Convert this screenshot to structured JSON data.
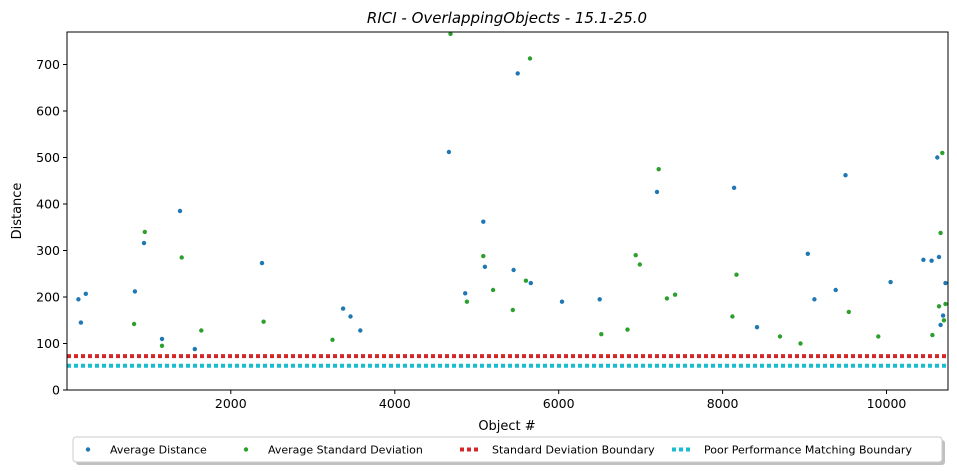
{
  "chart_data": {
    "type": "scatter",
    "title": "RICI - OverlappingObjects - 15.1-25.0",
    "xlabel": "Object #",
    "ylabel": "Distance",
    "xlim": [
      1,
      10750
    ],
    "ylim": [
      0,
      770
    ],
    "xticks": [
      2000,
      4000,
      6000,
      8000,
      10000
    ],
    "yticks": [
      0,
      100,
      200,
      300,
      400,
      500,
      600,
      700
    ],
    "grid": false,
    "legend_position": "bottom-outside",
    "series": [
      {
        "name": "Average Distance",
        "kind": "points",
        "color": "#1f77b4",
        "points": [
          [
            140,
            195
          ],
          [
            170,
            145
          ],
          [
            230,
            207
          ],
          [
            830,
            212
          ],
          [
            940,
            316
          ],
          [
            1160,
            110
          ],
          [
            1380,
            385
          ],
          [
            1560,
            88
          ],
          [
            2380,
            273
          ],
          [
            3370,
            175
          ],
          [
            3460,
            158
          ],
          [
            3580,
            128
          ],
          [
            4660,
            512
          ],
          [
            4860,
            208
          ],
          [
            5080,
            362
          ],
          [
            5100,
            265
          ],
          [
            5450,
            258
          ],
          [
            5500,
            681
          ],
          [
            5660,
            230
          ],
          [
            6040,
            190
          ],
          [
            6500,
            195
          ],
          [
            7200,
            426
          ],
          [
            8140,
            435
          ],
          [
            8420,
            135
          ],
          [
            9040,
            293
          ],
          [
            9120,
            195
          ],
          [
            9380,
            215
          ],
          [
            9500,
            462
          ],
          [
            10050,
            232
          ],
          [
            10450,
            280
          ],
          [
            10550,
            278
          ],
          [
            10620,
            500
          ],
          [
            10640,
            286
          ],
          [
            10660,
            140
          ],
          [
            10690,
            160
          ],
          [
            10720,
            230
          ]
        ]
      },
      {
        "name": "Average Standard Deviation",
        "kind": "points",
        "color": "#2ca02c",
        "points": [
          [
            820,
            142
          ],
          [
            950,
            340
          ],
          [
            1160,
            95
          ],
          [
            1400,
            285
          ],
          [
            1640,
            128
          ],
          [
            2400,
            147
          ],
          [
            3240,
            108
          ],
          [
            4680,
            766
          ],
          [
            4880,
            190
          ],
          [
            5080,
            288
          ],
          [
            5200,
            215
          ],
          [
            5440,
            172
          ],
          [
            5600,
            235
          ],
          [
            5650,
            713
          ],
          [
            6520,
            120
          ],
          [
            6840,
            130
          ],
          [
            6940,
            290
          ],
          [
            6990,
            270
          ],
          [
            7220,
            475
          ],
          [
            7320,
            197
          ],
          [
            7420,
            205
          ],
          [
            8120,
            158
          ],
          [
            8170,
            248
          ],
          [
            8700,
            115
          ],
          [
            8950,
            100
          ],
          [
            9540,
            168
          ],
          [
            9900,
            115
          ],
          [
            10560,
            118
          ],
          [
            10640,
            180
          ],
          [
            10660,
            338
          ],
          [
            10680,
            510
          ],
          [
            10700,
            150
          ],
          [
            10720,
            185
          ]
        ]
      },
      {
        "name": "Standard Deviation Boundary",
        "kind": "line",
        "style": "dotted",
        "color": "#d62728",
        "y": 73
      },
      {
        "name": "Poor Performance Matching Boundary",
        "kind": "line",
        "style": "dotted",
        "color": "#17becf",
        "y": 52
      }
    ]
  }
}
